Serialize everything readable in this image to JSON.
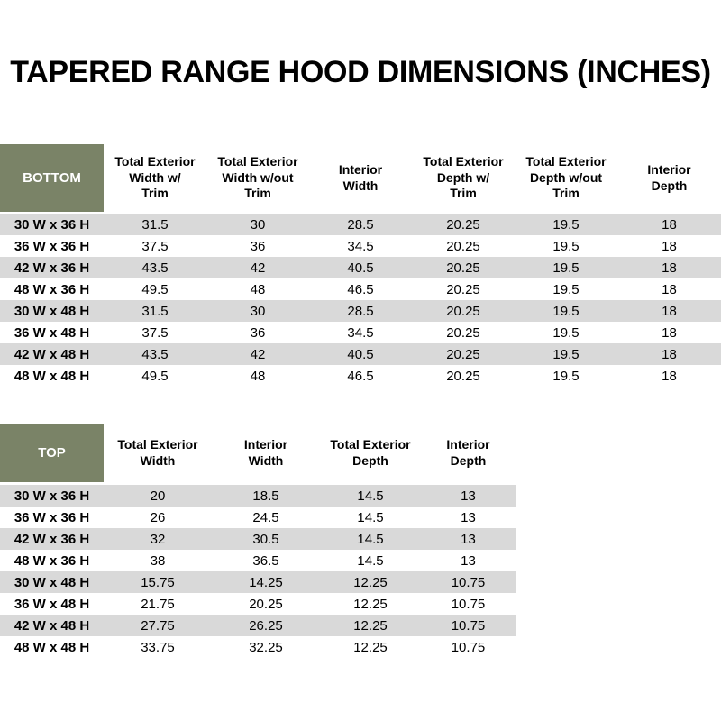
{
  "title": "TAPERED RANGE HOOD DIMENSIONS (INCHES)",
  "colors": {
    "header_green": "#7a8367",
    "row_alt_gray": "#d9d9d9",
    "label_text": "#ffffff",
    "body_text": "#000000"
  },
  "bottom_table": {
    "label": "BOTTOM",
    "columns": [
      "Total Exterior\nWidth w/\nTrim",
      "Total Exterior\nWidth w/out\nTrim",
      "Interior\nWidth",
      "Total Exterior\nDepth w/\nTrim",
      "Total Exterior\nDepth w/out\nTrim",
      "Interior\nDepth"
    ],
    "rows": [
      {
        "label": "30 W x 36 H",
        "values": [
          "31.5",
          "30",
          "28.5",
          "20.25",
          "19.5",
          "18"
        ]
      },
      {
        "label": "36 W x 36 H",
        "values": [
          "37.5",
          "36",
          "34.5",
          "20.25",
          "19.5",
          "18"
        ]
      },
      {
        "label": "42 W x 36 H",
        "values": [
          "43.5",
          "42",
          "40.5",
          "20.25",
          "19.5",
          "18"
        ]
      },
      {
        "label": "48 W x 36 H",
        "values": [
          "49.5",
          "48",
          "46.5",
          "20.25",
          "19.5",
          "18"
        ]
      },
      {
        "label": "30 W x 48 H",
        "values": [
          "31.5",
          "30",
          "28.5",
          "20.25",
          "19.5",
          "18"
        ]
      },
      {
        "label": "36 W x 48 H",
        "values": [
          "37.5",
          "36",
          "34.5",
          "20.25",
          "19.5",
          "18"
        ]
      },
      {
        "label": "42 W x 48 H",
        "values": [
          "43.5",
          "42",
          "40.5",
          "20.25",
          "19.5",
          "18"
        ]
      },
      {
        "label": "48 W x 48 H",
        "values": [
          "49.5",
          "48",
          "46.5",
          "20.25",
          "19.5",
          "18"
        ]
      }
    ]
  },
  "top_table": {
    "label": "TOP",
    "columns": [
      "Total Exterior\nWidth",
      "Interior\nWidth",
      "Total Exterior\nDepth",
      "Interior\nDepth"
    ],
    "rows": [
      {
        "label": "30 W x 36 H",
        "values": [
          "20",
          "18.5",
          "14.5",
          "13"
        ]
      },
      {
        "label": "36 W x 36 H",
        "values": [
          "26",
          "24.5",
          "14.5",
          "13"
        ]
      },
      {
        "label": "42 W x 36 H",
        "values": [
          "32",
          "30.5",
          "14.5",
          "13"
        ]
      },
      {
        "label": "48 W x 36 H",
        "values": [
          "38",
          "36.5",
          "14.5",
          "13"
        ]
      },
      {
        "label": "30 W x 48 H",
        "values": [
          "15.75",
          "14.25",
          "12.25",
          "10.75"
        ]
      },
      {
        "label": "36 W x 48 H",
        "values": [
          "21.75",
          "20.25",
          "12.25",
          "10.75"
        ]
      },
      {
        "label": "42 W x 48 H",
        "values": [
          "27.75",
          "26.25",
          "12.25",
          "10.75"
        ]
      },
      {
        "label": "48 W x 48 H",
        "values": [
          "33.75",
          "32.25",
          "12.25",
          "10.75"
        ]
      }
    ]
  }
}
